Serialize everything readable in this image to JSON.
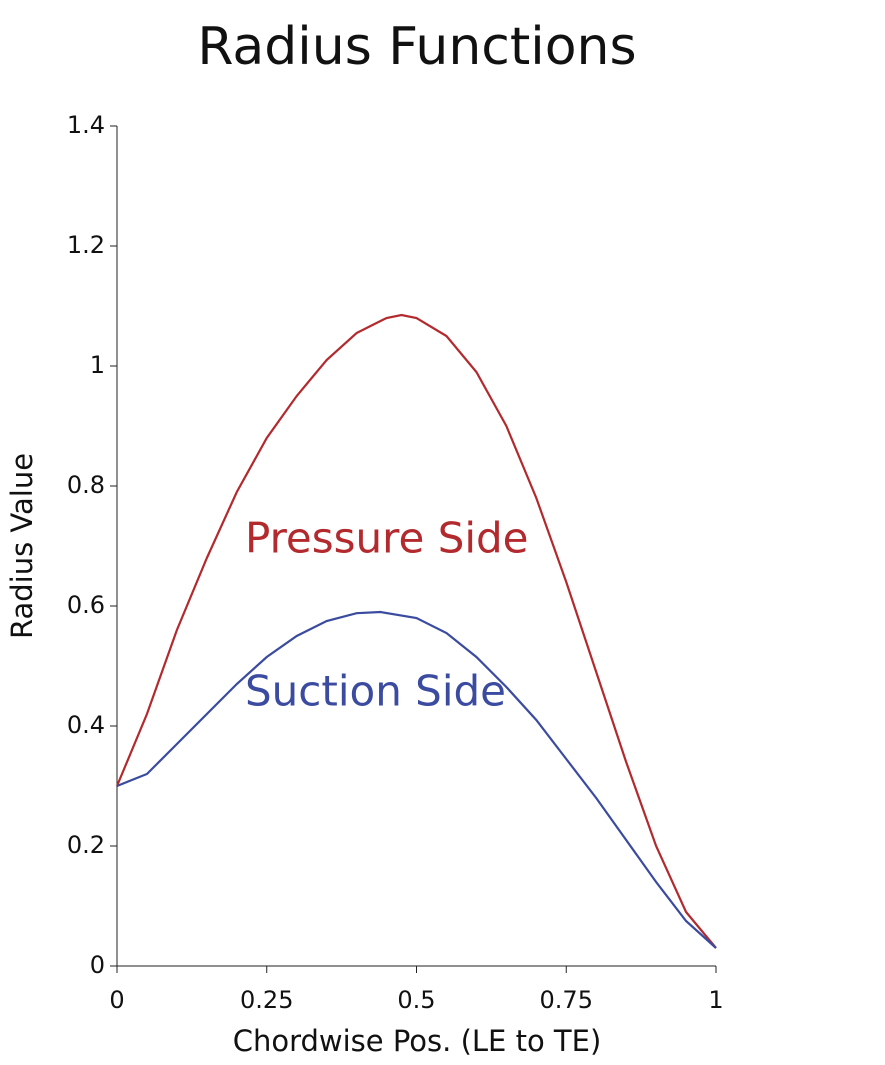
{
  "chart_data": {
    "type": "line",
    "title": "Radius Functions",
    "x_label": "Chordwise Pos. (LE to TE)",
    "y_label": "Radius Value",
    "series": [
      {
        "name": "Pressure Side",
        "color": "#b22a2e",
        "x": [
          0,
          0.05,
          0.1,
          0.15,
          0.2,
          0.25,
          0.3,
          0.35,
          0.4,
          0.45,
          0.475,
          0.5,
          0.55,
          0.6,
          0.65,
          0.7,
          0.75,
          0.8,
          0.85,
          0.9,
          0.95,
          1
        ],
        "values": [
          0.3,
          0.42,
          0.56,
          0.68,
          0.79,
          0.88,
          0.95,
          1.01,
          1.055,
          1.08,
          1.085,
          1.08,
          1.05,
          0.99,
          0.9,
          0.78,
          0.64,
          0.49,
          0.34,
          0.2,
          0.09,
          0.03
        ]
      },
      {
        "name": "Suction Side",
        "color": "#3a4ba0",
        "x": [
          0,
          0.05,
          0.1,
          0.15,
          0.2,
          0.25,
          0.3,
          0.35,
          0.4,
          0.44,
          0.5,
          0.55,
          0.6,
          0.65,
          0.7,
          0.75,
          0.8,
          0.85,
          0.9,
          0.95,
          1
        ],
        "values": [
          0.3,
          0.32,
          0.37,
          0.42,
          0.47,
          0.515,
          0.55,
          0.575,
          0.588,
          0.59,
          0.58,
          0.555,
          0.515,
          0.465,
          0.41,
          0.345,
          0.28,
          0.21,
          0.14,
          0.075,
          0.03
        ]
      }
    ],
    "xlim": [
      0,
      1
    ],
    "xticks": [
      0,
      0.25,
      0.5,
      0.75,
      1
    ],
    "ylim": [
      0,
      1.4
    ],
    "yticks": [
      0,
      0.2,
      0.4,
      0.6,
      0.8,
      1,
      1.2,
      1.4
    ]
  }
}
